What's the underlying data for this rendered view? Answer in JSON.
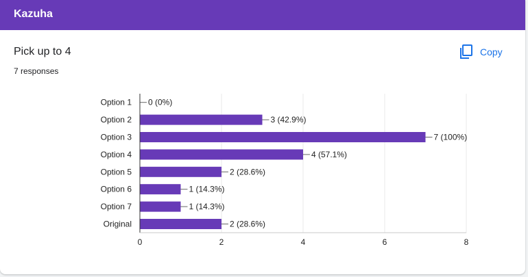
{
  "form": {
    "title": "Kazuha"
  },
  "question": {
    "title": "Pick up to 4",
    "responses": "7 responses",
    "copy_label": "Copy"
  },
  "icons": {
    "copy": "copy-icon"
  },
  "colors": {
    "header": "#673ab7",
    "bar": "#673ab7",
    "accent": "#1a73e8"
  },
  "chart_data": {
    "type": "bar",
    "orientation": "horizontal",
    "categories": [
      "Option 1",
      "Option 2",
      "Option 3",
      "Option 4",
      "Option 5",
      "Option 6",
      "Option 7",
      "Original"
    ],
    "values": [
      0,
      3,
      7,
      4,
      2,
      1,
      1,
      2
    ],
    "data_labels": [
      "0 (0%)",
      "3 (42.9%)",
      "7 (100%)",
      "4 (57.1%)",
      "2 (28.6%)",
      "1 (14.3%)",
      "1 (14.3%)",
      "2 (28.6%)"
    ],
    "xlim": [
      0,
      8
    ],
    "xticks": [
      0,
      2,
      4,
      6,
      8
    ],
    "grid": true
  }
}
